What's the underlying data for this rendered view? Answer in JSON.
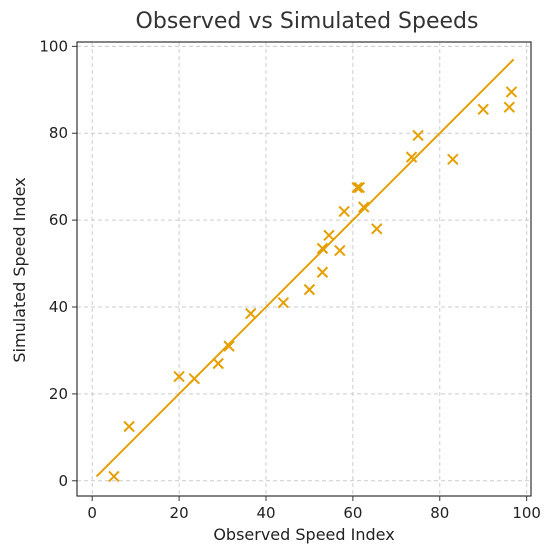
{
  "chart_data": {
    "type": "scatter",
    "title": "Observed vs Simulated Speeds",
    "xlabel": "Observed Speed Index",
    "ylabel": "Simulated Speed Index",
    "xlim": [
      -3.5,
      101
    ],
    "ylim": [
      -3.5,
      101
    ],
    "xticks": [
      0,
      20,
      40,
      60,
      80,
      100
    ],
    "yticks": [
      0,
      20,
      40,
      60,
      80,
      100
    ],
    "grid": true,
    "color": "#E69F00",
    "marker": "x",
    "series": [
      {
        "x": [
          5,
          8.5,
          20,
          23.5,
          29,
          31.5,
          36.5,
          44,
          50,
          53,
          53,
          54.5,
          57,
          58,
          61,
          61.5,
          62.5,
          65.5,
          73.5,
          75,
          83,
          90,
          96,
          96.5
        ],
        "y": [
          1,
          12.5,
          24,
          23.5,
          27,
          31,
          38.5,
          41,
          44,
          48,
          53.5,
          56.5,
          53,
          62,
          67.5,
          67.5,
          63,
          58,
          74.5,
          79.5,
          74,
          85.5,
          86,
          89.5
        ]
      }
    ],
    "fit_line": {
      "x": [
        1,
        97
      ],
      "y": [
        1,
        97
      ]
    }
  }
}
